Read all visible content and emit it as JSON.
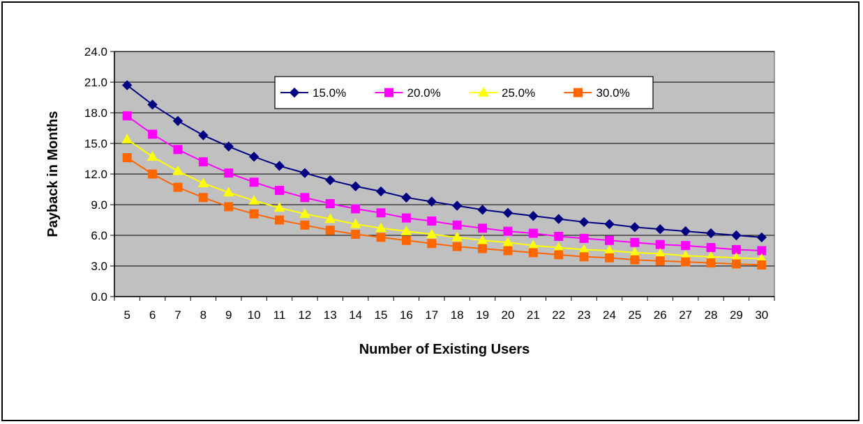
{
  "chart_data": {
    "type": "line",
    "title": "",
    "xlabel": "Number of Existing Users",
    "ylabel": "Payback in Months",
    "x": [
      5,
      6,
      7,
      8,
      9,
      10,
      11,
      12,
      13,
      14,
      15,
      16,
      17,
      18,
      19,
      20,
      21,
      22,
      23,
      24,
      25,
      26,
      27,
      28,
      29,
      30
    ],
    "ylim": [
      0,
      24
    ],
    "yticks": [
      "0.0",
      "3.0",
      "6.0",
      "9.0",
      "12.0",
      "15.0",
      "18.0",
      "21.0",
      "24.0"
    ],
    "grid": true,
    "legend_position": "top-center",
    "plot_background": "#c0c0c0",
    "series": [
      {
        "name": "15.0%",
        "color": "#000080",
        "marker": "diamond",
        "values": [
          20.7,
          18.8,
          17.2,
          15.8,
          14.7,
          13.7,
          12.8,
          12.1,
          11.4,
          10.8,
          10.3,
          9.7,
          9.3,
          8.9,
          8.5,
          8.2,
          7.9,
          7.6,
          7.3,
          7.1,
          6.8,
          6.6,
          6.4,
          6.2,
          6.0,
          5.8
        ]
      },
      {
        "name": "20.0%",
        "color": "#ff00ff",
        "marker": "square",
        "values": [
          17.7,
          15.9,
          14.4,
          13.2,
          12.1,
          11.2,
          10.4,
          9.7,
          9.1,
          8.6,
          8.2,
          7.7,
          7.4,
          7.0,
          6.7,
          6.4,
          6.2,
          5.9,
          5.7,
          5.5,
          5.3,
          5.1,
          5.0,
          4.8,
          4.6,
          4.5
        ]
      },
      {
        "name": "25.0%",
        "color": "#ffff00",
        "marker": "triangle",
        "values": [
          15.4,
          13.7,
          12.3,
          11.1,
          10.2,
          9.4,
          8.7,
          8.1,
          7.6,
          7.1,
          6.7,
          6.4,
          6.1,
          5.8,
          5.5,
          5.3,
          5.0,
          4.8,
          4.6,
          4.5,
          4.3,
          4.2,
          4.0,
          3.9,
          3.8,
          3.7
        ]
      },
      {
        "name": "30.0%",
        "color": "#ff6600",
        "marker": "square",
        "values": [
          13.6,
          12.0,
          10.7,
          9.7,
          8.8,
          8.1,
          7.5,
          7.0,
          6.5,
          6.1,
          5.8,
          5.5,
          5.2,
          4.9,
          4.7,
          4.5,
          4.3,
          4.1,
          3.9,
          3.8,
          3.6,
          3.5,
          3.4,
          3.3,
          3.2,
          3.1
        ]
      }
    ]
  }
}
